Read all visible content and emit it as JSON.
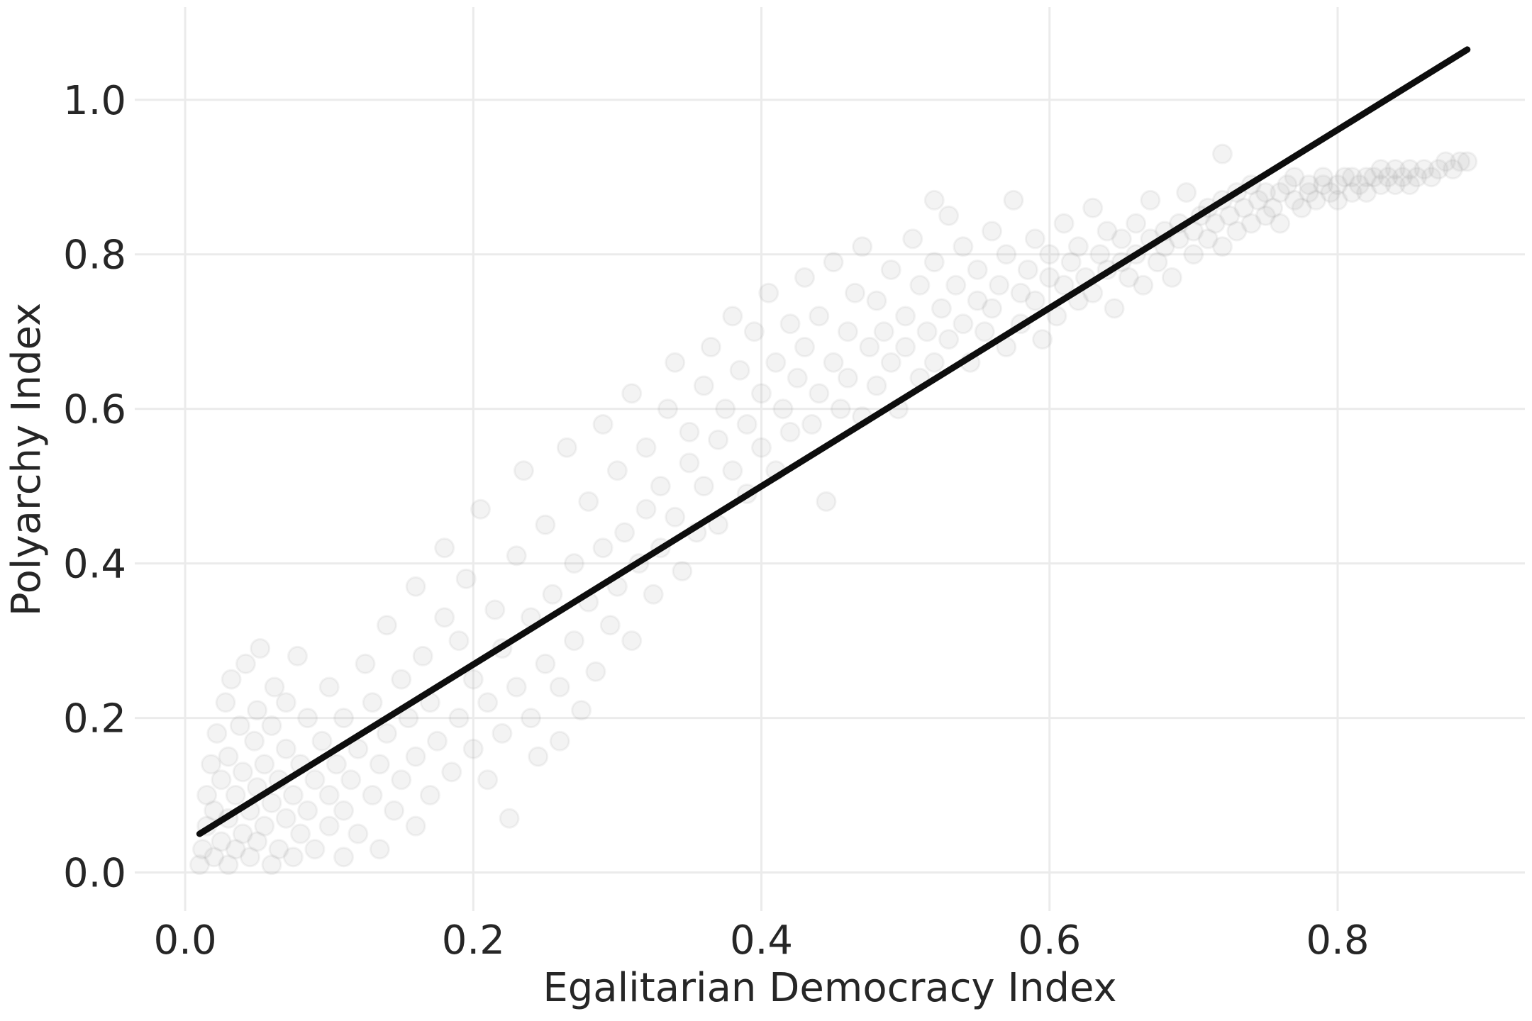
{
  "chart_data": {
    "type": "scatter",
    "title": "",
    "xlabel": "Egalitarian Democracy Index",
    "ylabel": "Polyarchy Index",
    "xlim": [
      -0.035,
      0.93
    ],
    "ylim": [
      -0.05,
      1.12
    ],
    "x_ticks": [
      {
        "value": 0.0,
        "label": "0.0"
      },
      {
        "value": 0.2,
        "label": "0.2"
      },
      {
        "value": 0.4,
        "label": "0.4"
      },
      {
        "value": 0.6,
        "label": "0.6"
      },
      {
        "value": 0.8,
        "label": "0.8"
      }
    ],
    "y_ticks": [
      {
        "value": 0.0,
        "label": "0.0"
      },
      {
        "value": 0.2,
        "label": "0.2"
      },
      {
        "value": 0.4,
        "label": "0.4"
      },
      {
        "value": 0.6,
        "label": "0.6"
      },
      {
        "value": 0.8,
        "label": "0.8"
      },
      {
        "value": 1.0,
        "label": "1.0"
      }
    ],
    "grid": true,
    "legend": "none",
    "point_color": "#a6a6a6",
    "line_color": "#0d0d0d",
    "fit_line": {
      "x": [
        0.01,
        0.89
      ],
      "y": [
        0.05,
        1.065
      ]
    },
    "series": [
      {
        "points": [
          [
            0.01,
            0.01
          ],
          [
            0.012,
            0.03
          ],
          [
            0.015,
            0.06
          ],
          [
            0.015,
            0.1
          ],
          [
            0.018,
            0.14
          ],
          [
            0.02,
            0.02
          ],
          [
            0.02,
            0.08
          ],
          [
            0.022,
            0.18
          ],
          [
            0.025,
            0.04
          ],
          [
            0.025,
            0.12
          ],
          [
            0.028,
            0.22
          ],
          [
            0.03,
            0.01
          ],
          [
            0.03,
            0.07
          ],
          [
            0.03,
            0.15
          ],
          [
            0.032,
            0.25
          ],
          [
            0.035,
            0.03
          ],
          [
            0.035,
            0.1
          ],
          [
            0.038,
            0.19
          ],
          [
            0.04,
            0.05
          ],
          [
            0.04,
            0.13
          ],
          [
            0.042,
            0.27
          ],
          [
            0.045,
            0.02
          ],
          [
            0.045,
            0.08
          ],
          [
            0.048,
            0.17
          ],
          [
            0.05,
            0.04
          ],
          [
            0.05,
            0.11
          ],
          [
            0.05,
            0.21
          ],
          [
            0.052,
            0.29
          ],
          [
            0.055,
            0.06
          ],
          [
            0.055,
            0.14
          ],
          [
            0.06,
            0.01
          ],
          [
            0.06,
            0.09
          ],
          [
            0.06,
            0.19
          ],
          [
            0.062,
            0.24
          ],
          [
            0.065,
            0.03
          ],
          [
            0.065,
            0.12
          ],
          [
            0.07,
            0.07
          ],
          [
            0.07,
            0.16
          ],
          [
            0.07,
            0.22
          ],
          [
            0.075,
            0.02
          ],
          [
            0.075,
            0.1
          ],
          [
            0.078,
            0.28
          ],
          [
            0.08,
            0.05
          ],
          [
            0.08,
            0.14
          ],
          [
            0.085,
            0.08
          ],
          [
            0.085,
            0.2
          ],
          [
            0.09,
            0.03
          ],
          [
            0.09,
            0.12
          ],
          [
            0.095,
            0.17
          ],
          [
            0.1,
            0.06
          ],
          [
            0.1,
            0.1
          ],
          [
            0.1,
            0.24
          ],
          [
            0.105,
            0.14
          ],
          [
            0.11,
            0.02
          ],
          [
            0.11,
            0.08
          ],
          [
            0.11,
            0.2
          ],
          [
            0.115,
            0.12
          ],
          [
            0.12,
            0.05
          ],
          [
            0.12,
            0.16
          ],
          [
            0.125,
            0.27
          ],
          [
            0.13,
            0.1
          ],
          [
            0.13,
            0.22
          ],
          [
            0.135,
            0.03
          ],
          [
            0.135,
            0.14
          ],
          [
            0.14,
            0.18
          ],
          [
            0.14,
            0.32
          ],
          [
            0.145,
            0.08
          ],
          [
            0.15,
            0.12
          ],
          [
            0.15,
            0.25
          ],
          [
            0.155,
            0.2
          ],
          [
            0.16,
            0.06
          ],
          [
            0.16,
            0.15
          ],
          [
            0.16,
            0.37
          ],
          [
            0.165,
            0.28
          ],
          [
            0.17,
            0.1
          ],
          [
            0.17,
            0.22
          ],
          [
            0.175,
            0.17
          ],
          [
            0.18,
            0.33
          ],
          [
            0.18,
            0.42
          ],
          [
            0.185,
            0.13
          ],
          [
            0.19,
            0.2
          ],
          [
            0.19,
            0.3
          ],
          [
            0.195,
            0.38
          ],
          [
            0.2,
            0.16
          ],
          [
            0.2,
            0.25
          ],
          [
            0.205,
            0.47
          ],
          [
            0.21,
            0.12
          ],
          [
            0.21,
            0.22
          ],
          [
            0.215,
            0.34
          ],
          [
            0.22,
            0.18
          ],
          [
            0.22,
            0.29
          ],
          [
            0.225,
            0.07
          ],
          [
            0.23,
            0.24
          ],
          [
            0.23,
            0.41
          ],
          [
            0.235,
            0.52
          ],
          [
            0.24,
            0.2
          ],
          [
            0.24,
            0.33
          ],
          [
            0.245,
            0.15
          ],
          [
            0.25,
            0.27
          ],
          [
            0.25,
            0.45
          ],
          [
            0.255,
            0.36
          ],
          [
            0.26,
            0.17
          ],
          [
            0.26,
            0.24
          ],
          [
            0.265,
            0.55
          ],
          [
            0.27,
            0.3
          ],
          [
            0.27,
            0.4
          ],
          [
            0.275,
            0.21
          ],
          [
            0.28,
            0.35
          ],
          [
            0.28,
            0.48
          ],
          [
            0.285,
            0.26
          ],
          [
            0.29,
            0.42
          ],
          [
            0.29,
            0.58
          ],
          [
            0.295,
            0.32
          ],
          [
            0.3,
            0.37
          ],
          [
            0.3,
            0.52
          ],
          [
            0.305,
            0.44
          ],
          [
            0.31,
            0.3
          ],
          [
            0.31,
            0.62
          ],
          [
            0.315,
            0.4
          ],
          [
            0.32,
            0.47
          ],
          [
            0.32,
            0.55
          ],
          [
            0.325,
            0.36
          ],
          [
            0.33,
            0.5
          ],
          [
            0.33,
            0.42
          ],
          [
            0.335,
            0.6
          ],
          [
            0.34,
            0.46
          ],
          [
            0.34,
            0.66
          ],
          [
            0.345,
            0.39
          ],
          [
            0.35,
            0.53
          ],
          [
            0.35,
            0.57
          ],
          [
            0.355,
            0.44
          ],
          [
            0.36,
            0.63
          ],
          [
            0.36,
            0.5
          ],
          [
            0.365,
            0.68
          ],
          [
            0.37,
            0.56
          ],
          [
            0.37,
            0.45
          ],
          [
            0.375,
            0.6
          ],
          [
            0.38,
            0.52
          ],
          [
            0.38,
            0.72
          ],
          [
            0.385,
            0.65
          ],
          [
            0.39,
            0.49
          ],
          [
            0.39,
            0.58
          ],
          [
            0.395,
            0.7
          ],
          [
            0.4,
            0.55
          ],
          [
            0.4,
            0.62
          ],
          [
            0.405,
            0.75
          ],
          [
            0.41,
            0.52
          ],
          [
            0.41,
            0.66
          ],
          [
            0.415,
            0.6
          ],
          [
            0.42,
            0.71
          ],
          [
            0.42,
            0.57
          ],
          [
            0.425,
            0.64
          ],
          [
            0.43,
            0.77
          ],
          [
            0.43,
            0.68
          ],
          [
            0.435,
            0.58
          ],
          [
            0.44,
            0.62
          ],
          [
            0.44,
            0.72
          ],
          [
            0.445,
            0.48
          ],
          [
            0.45,
            0.66
          ],
          [
            0.45,
            0.79
          ],
          [
            0.455,
            0.6
          ],
          [
            0.46,
            0.7
          ],
          [
            0.46,
            0.64
          ],
          [
            0.465,
            0.75
          ],
          [
            0.47,
            0.59
          ],
          [
            0.47,
            0.81
          ],
          [
            0.475,
            0.68
          ],
          [
            0.48,
            0.63
          ],
          [
            0.48,
            0.74
          ],
          [
            0.485,
            0.7
          ],
          [
            0.49,
            0.66
          ],
          [
            0.49,
            0.78
          ],
          [
            0.495,
            0.6
          ],
          [
            0.5,
            0.72
          ],
          [
            0.5,
            0.68
          ],
          [
            0.505,
            0.82
          ],
          [
            0.51,
            0.64
          ],
          [
            0.51,
            0.76
          ],
          [
            0.515,
            0.7
          ],
          [
            0.52,
            0.66
          ],
          [
            0.52,
            0.79
          ],
          [
            0.525,
            0.73
          ],
          [
            0.53,
            0.85
          ],
          [
            0.53,
            0.69
          ],
          [
            0.535,
            0.76
          ],
          [
            0.54,
            0.71
          ],
          [
            0.54,
            0.81
          ],
          [
            0.545,
            0.66
          ],
          [
            0.55,
            0.74
          ],
          [
            0.55,
            0.78
          ],
          [
            0.555,
            0.7
          ],
          [
            0.56,
            0.83
          ],
          [
            0.56,
            0.73
          ],
          [
            0.565,
            0.76
          ],
          [
            0.57,
            0.68
          ],
          [
            0.57,
            0.8
          ],
          [
            0.575,
            0.87
          ],
          [
            0.58,
            0.75
          ],
          [
            0.58,
            0.71
          ],
          [
            0.585,
            0.78
          ],
          [
            0.59,
            0.82
          ],
          [
            0.59,
            0.74
          ],
          [
            0.595,
            0.69
          ],
          [
            0.6,
            0.77
          ],
          [
            0.6,
            0.8
          ],
          [
            0.605,
            0.72
          ],
          [
            0.61,
            0.84
          ],
          [
            0.61,
            0.76
          ],
          [
            0.615,
            0.79
          ],
          [
            0.62,
            0.74
          ],
          [
            0.62,
            0.81
          ],
          [
            0.625,
            0.77
          ],
          [
            0.63,
            0.86
          ],
          [
            0.63,
            0.75
          ],
          [
            0.635,
            0.8
          ],
          [
            0.64,
            0.78
          ],
          [
            0.64,
            0.83
          ],
          [
            0.645,
            0.73
          ],
          [
            0.65,
            0.79
          ],
          [
            0.65,
            0.82
          ],
          [
            0.655,
            0.77
          ],
          [
            0.66,
            0.84
          ],
          [
            0.66,
            0.8
          ],
          [
            0.665,
            0.76
          ],
          [
            0.67,
            0.82
          ],
          [
            0.67,
            0.87
          ],
          [
            0.675,
            0.79
          ],
          [
            0.68,
            0.83
          ],
          [
            0.68,
            0.81
          ],
          [
            0.685,
            0.77
          ],
          [
            0.69,
            0.84
          ],
          [
            0.69,
            0.82
          ],
          [
            0.695,
            0.88
          ],
          [
            0.7,
            0.8
          ],
          [
            0.7,
            0.83
          ],
          [
            0.705,
            0.85
          ],
          [
            0.71,
            0.82
          ],
          [
            0.71,
            0.86
          ],
          [
            0.715,
            0.84
          ],
          [
            0.72,
            0.81
          ],
          [
            0.72,
            0.87
          ],
          [
            0.725,
            0.85
          ],
          [
            0.73,
            0.83
          ],
          [
            0.73,
            0.88
          ],
          [
            0.735,
            0.86
          ],
          [
            0.74,
            0.84
          ],
          [
            0.74,
            0.89
          ],
          [
            0.745,
            0.87
          ],
          [
            0.75,
            0.85
          ],
          [
            0.75,
            0.88
          ],
          [
            0.755,
            0.86
          ],
          [
            0.76,
            0.88
          ],
          [
            0.76,
            0.84
          ],
          [
            0.765,
            0.89
          ],
          [
            0.77,
            0.87
          ],
          [
            0.77,
            0.9
          ],
          [
            0.775,
            0.86
          ],
          [
            0.78,
            0.88
          ],
          [
            0.78,
            0.89
          ],
          [
            0.785,
            0.87
          ],
          [
            0.79,
            0.89
          ],
          [
            0.79,
            0.9
          ],
          [
            0.795,
            0.88
          ],
          [
            0.8,
            0.89
          ],
          [
            0.8,
            0.87
          ],
          [
            0.805,
            0.9
          ],
          [
            0.81,
            0.88
          ],
          [
            0.81,
            0.9
          ],
          [
            0.815,
            0.89
          ],
          [
            0.82,
            0.9
          ],
          [
            0.82,
            0.88
          ],
          [
            0.825,
            0.9
          ],
          [
            0.83,
            0.89
          ],
          [
            0.83,
            0.91
          ],
          [
            0.835,
            0.9
          ],
          [
            0.84,
            0.89
          ],
          [
            0.84,
            0.91
          ],
          [
            0.845,
            0.9
          ],
          [
            0.85,
            0.91
          ],
          [
            0.85,
            0.89
          ],
          [
            0.855,
            0.9
          ],
          [
            0.86,
            0.91
          ],
          [
            0.865,
            0.9
          ],
          [
            0.87,
            0.91
          ],
          [
            0.875,
            0.92
          ],
          [
            0.88,
            0.91
          ],
          [
            0.885,
            0.92
          ],
          [
            0.89,
            0.92
          ],
          [
            0.72,
            0.93
          ],
          [
            0.52,
            0.87
          ]
        ]
      }
    ]
  }
}
